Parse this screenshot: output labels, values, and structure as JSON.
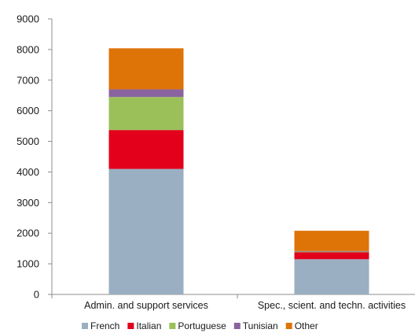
{
  "chart_data": {
    "type": "bar",
    "stacked": true,
    "title": "",
    "xlabel": "",
    "ylabel": "",
    "categories": [
      "Admin. and support services",
      "Spec., scient. and techn. activities"
    ],
    "series": [
      {
        "name": "French",
        "values": [
          4100,
          1150
        ],
        "color": "#9aafc1"
      },
      {
        "name": "Italian",
        "values": [
          1270,
          230
        ],
        "color": "#e2001a"
      },
      {
        "name": "Portuguese",
        "values": [
          1080,
          20
        ],
        "color": "#9bc05a"
      },
      {
        "name": "Tunisian",
        "values": [
          250,
          20
        ],
        "color": "#8a64a0"
      },
      {
        "name": "Other",
        "values": [
          1340,
          660
        ],
        "color": "#de7307"
      }
    ],
    "ylim": [
      0,
      9000
    ],
    "yticks": [
      "0",
      "1000",
      "2000",
      "3000",
      "4000",
      "5000",
      "6000",
      "7000",
      "8000",
      "9000"
    ],
    "grid": false,
    "legend_position": "bottom"
  }
}
